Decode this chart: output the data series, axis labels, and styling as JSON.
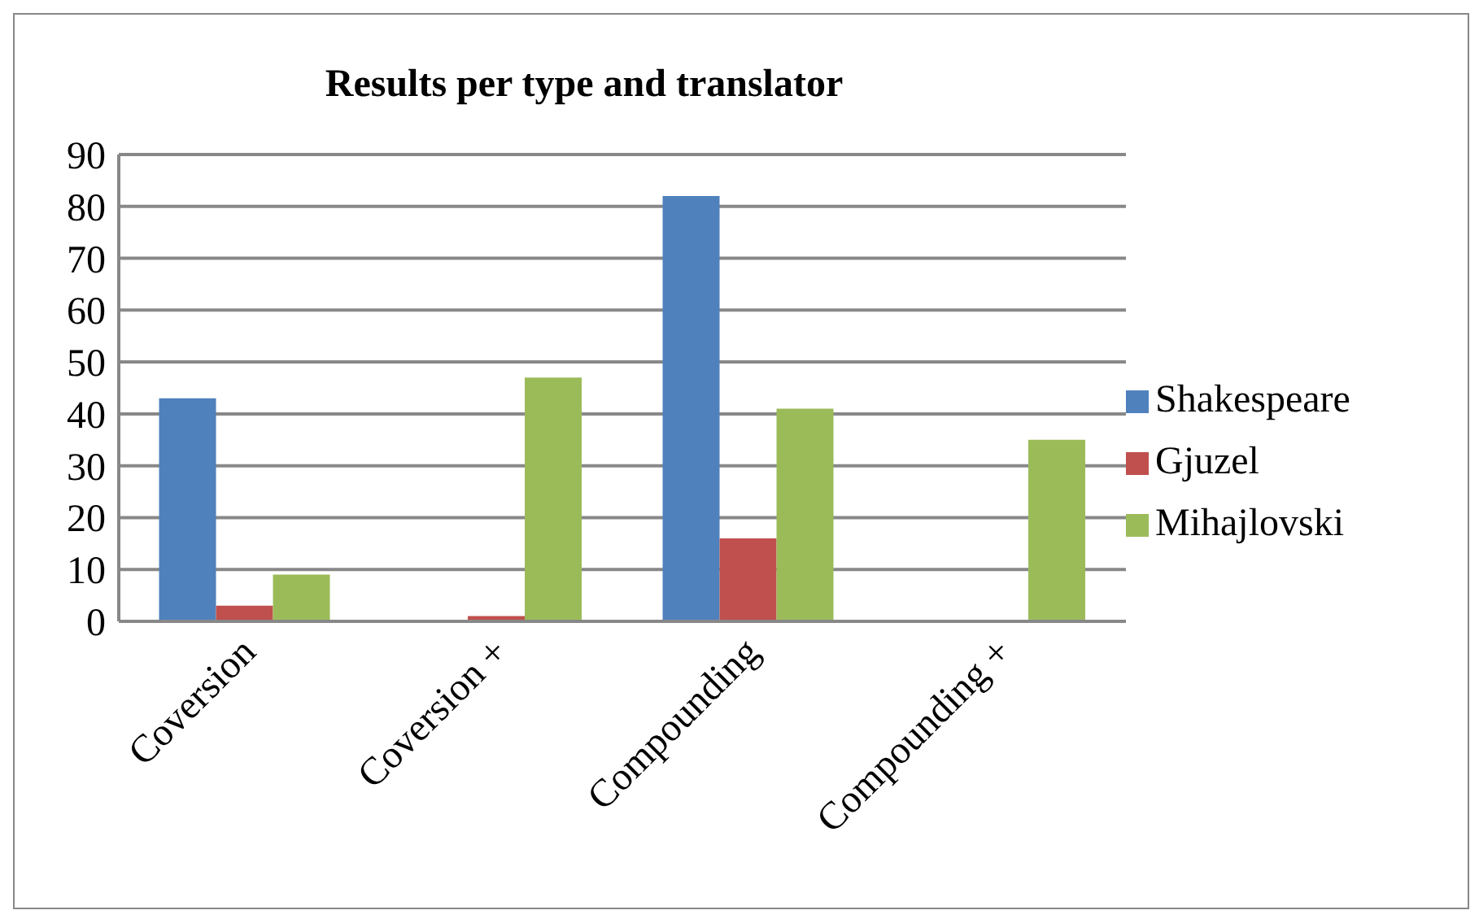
{
  "chart_data": {
    "type": "bar",
    "title": "Results per type and translator",
    "categories": [
      "Coversion",
      "Coversion +",
      "Compounding",
      "Compounding +"
    ],
    "series": [
      {
        "name": "Shakespeare",
        "color": "#4f81bd",
        "values": [
          43,
          0,
          82,
          0
        ]
      },
      {
        "name": "Gjuzel",
        "color": "#c0504d",
        "values": [
          3,
          1,
          16,
          0
        ]
      },
      {
        "name": "Mihajlovski",
        "color": "#9bbb59",
        "values": [
          9,
          47,
          41,
          35
        ]
      }
    ],
    "ylim": [
      0,
      90
    ],
    "yticks": [
      0,
      10,
      20,
      30,
      40,
      50,
      60,
      70,
      80,
      90
    ],
    "grid": "y",
    "legend": "right"
  }
}
